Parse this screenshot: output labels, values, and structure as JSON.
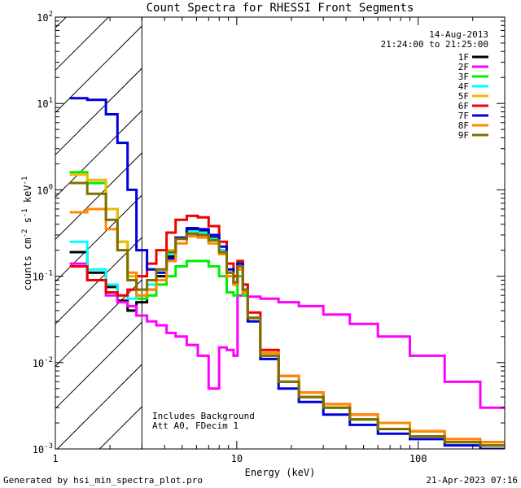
{
  "footer": {
    "generated": "Generated by hsi_min_spectra_plot.pro",
    "date": "21-Apr-2023 07:16"
  },
  "chart_data": {
    "type": "line",
    "title": "Count Spectra for RHESSI Front Segments",
    "xlabel": "Energy (keV)",
    "ylabel_parts": {
      "base": "counts cm",
      "sup1": "-2",
      "mid": " s",
      "sup2": "-1",
      "mid2": " keV",
      "sup3": "-1"
    },
    "xscale": "log",
    "yscale": "log",
    "xlim": [
      1,
      300
    ],
    "ylim": [
      0.001,
      100
    ],
    "x_ticks": [
      {
        "v": 1,
        "label": "1"
      },
      {
        "v": 10,
        "label": "10"
      },
      {
        "v": 100,
        "label": "100"
      }
    ],
    "y_ticks": [
      {
        "v": 0.001,
        "base": "10",
        "exp": "-3"
      },
      {
        "v": 0.01,
        "base": "10",
        "exp": "-2"
      },
      {
        "v": 0.1,
        "base": "10",
        "exp": "-1"
      },
      {
        "v": 1,
        "base": "10",
        "exp": "0"
      },
      {
        "v": 10,
        "base": "10",
        "exp": "1"
      },
      {
        "v": 100,
        "base": "10",
        "exp": "2"
      }
    ],
    "excluded_region": {
      "from": 1,
      "to": 3,
      "style": "hatched"
    },
    "date_label": "14-Aug-2013",
    "time_label": "21:24:00 to 21:25:00",
    "annotations": [
      "Includes Background",
      "Att A0, FDecim 1"
    ],
    "legend_position": "top-right",
    "series": [
      {
        "name": "1F",
        "color": "#000000",
        "values": [
          0.19,
          0.11,
          0.075,
          0.052,
          0.04,
          0.05,
          0.07,
          0.1,
          0.17,
          0.28,
          0.34,
          0.33,
          0.28,
          0.2,
          0.11,
          0.085,
          0.14,
          0.07,
          0.033,
          0.012,
          0.006,
          0.004,
          0.003,
          0.0022,
          0.0017,
          0.0014,
          0.0012,
          0.0011
        ]
      },
      {
        "name": "2F",
        "color": "#ff00ff",
        "values": [
          0.14,
          0.09,
          0.06,
          0.05,
          0.045,
          0.035,
          0.03,
          0.027,
          0.022,
          0.02,
          0.016,
          0.012,
          0.005,
          0.015,
          0.014,
          0.012,
          0.06,
          0.06,
          0.058,
          0.055,
          0.05,
          0.045,
          0.036,
          0.028,
          0.02,
          0.012,
          0.006,
          0.003
        ]
      },
      {
        "name": "3F",
        "color": "#00ee00",
        "values": [
          1.6,
          1.2,
          0.6,
          0.25,
          0.1,
          0.055,
          0.06,
          0.08,
          0.1,
          0.13,
          0.15,
          0.15,
          0.13,
          0.1,
          0.065,
          0.06,
          0.1,
          0.06,
          0.03,
          0.011,
          0.006,
          0.004,
          0.003,
          0.0022,
          0.0017,
          0.0014,
          0.0012,
          0.0011
        ]
      },
      {
        "name": "4F",
        "color": "#00ffff",
        "values": [
          0.25,
          0.12,
          0.08,
          0.06,
          0.055,
          0.06,
          0.08,
          0.11,
          0.18,
          0.28,
          0.33,
          0.32,
          0.27,
          0.2,
          0.11,
          0.085,
          0.13,
          0.07,
          0.033,
          0.012,
          0.006,
          0.004,
          0.003,
          0.0022,
          0.0017,
          0.0014,
          0.0012,
          0.0011
        ]
      },
      {
        "name": "5F",
        "color": "#eebb00",
        "values": [
          1.5,
          1.3,
          0.6,
          0.25,
          0.1,
          0.07,
          0.09,
          0.12,
          0.2,
          0.28,
          0.31,
          0.3,
          0.26,
          0.19,
          0.11,
          0.085,
          0.13,
          0.07,
          0.033,
          0.012,
          0.006,
          0.004,
          0.003,
          0.0022,
          0.0017,
          0.0014,
          0.0012,
          0.0011
        ]
      },
      {
        "name": "6F",
        "color": "#ee0000",
        "values": [
          0.13,
          0.09,
          0.065,
          0.06,
          0.07,
          0.1,
          0.14,
          0.2,
          0.32,
          0.45,
          0.5,
          0.48,
          0.38,
          0.25,
          0.14,
          0.1,
          0.15,
          0.08,
          0.038,
          0.014,
          0.007,
          0.0045,
          0.0033,
          0.0025,
          0.002,
          0.0016,
          0.0013,
          0.0012
        ]
      },
      {
        "name": "7F",
        "color": "#0000dd",
        "values": [
          11.5,
          11,
          7.5,
          3.5,
          1.0,
          0.2,
          0.12,
          0.11,
          0.16,
          0.28,
          0.36,
          0.35,
          0.3,
          0.22,
          0.12,
          0.08,
          0.14,
          0.07,
          0.03,
          0.011,
          0.005,
          0.0035,
          0.0025,
          0.0019,
          0.0015,
          0.0013,
          0.0011,
          0.001
        ]
      },
      {
        "name": "8F",
        "color": "#ff8800",
        "values": [
          0.55,
          0.6,
          0.35,
          0.2,
          0.11,
          0.06,
          0.07,
          0.09,
          0.15,
          0.24,
          0.29,
          0.28,
          0.24,
          0.18,
          0.1,
          0.08,
          0.12,
          0.065,
          0.033,
          0.013,
          0.007,
          0.0045,
          0.0033,
          0.0025,
          0.002,
          0.0016,
          0.0013,
          0.0012
        ]
      },
      {
        "name": "9F",
        "color": "#7f6f00",
        "values": [
          1.2,
          0.9,
          0.45,
          0.2,
          0.09,
          0.07,
          0.09,
          0.12,
          0.19,
          0.27,
          0.31,
          0.3,
          0.26,
          0.19,
          0.11,
          0.085,
          0.13,
          0.07,
          0.033,
          0.012,
          0.006,
          0.004,
          0.003,
          0.0022,
          0.0017,
          0.0014,
          0.0012,
          0.0011
        ]
      }
    ],
    "energy_bins": [
      1.2,
      1.5,
      1.9,
      2.2,
      2.5,
      2.8,
      3.2,
      3.6,
      4.1,
      4.6,
      5.3,
      6.1,
      7.0,
      8.0,
      8.8,
      9.6,
      10.1,
      10.8,
      11.5,
      13.5,
      17,
      22,
      30,
      42,
      60,
      90,
      140,
      220
    ]
  }
}
